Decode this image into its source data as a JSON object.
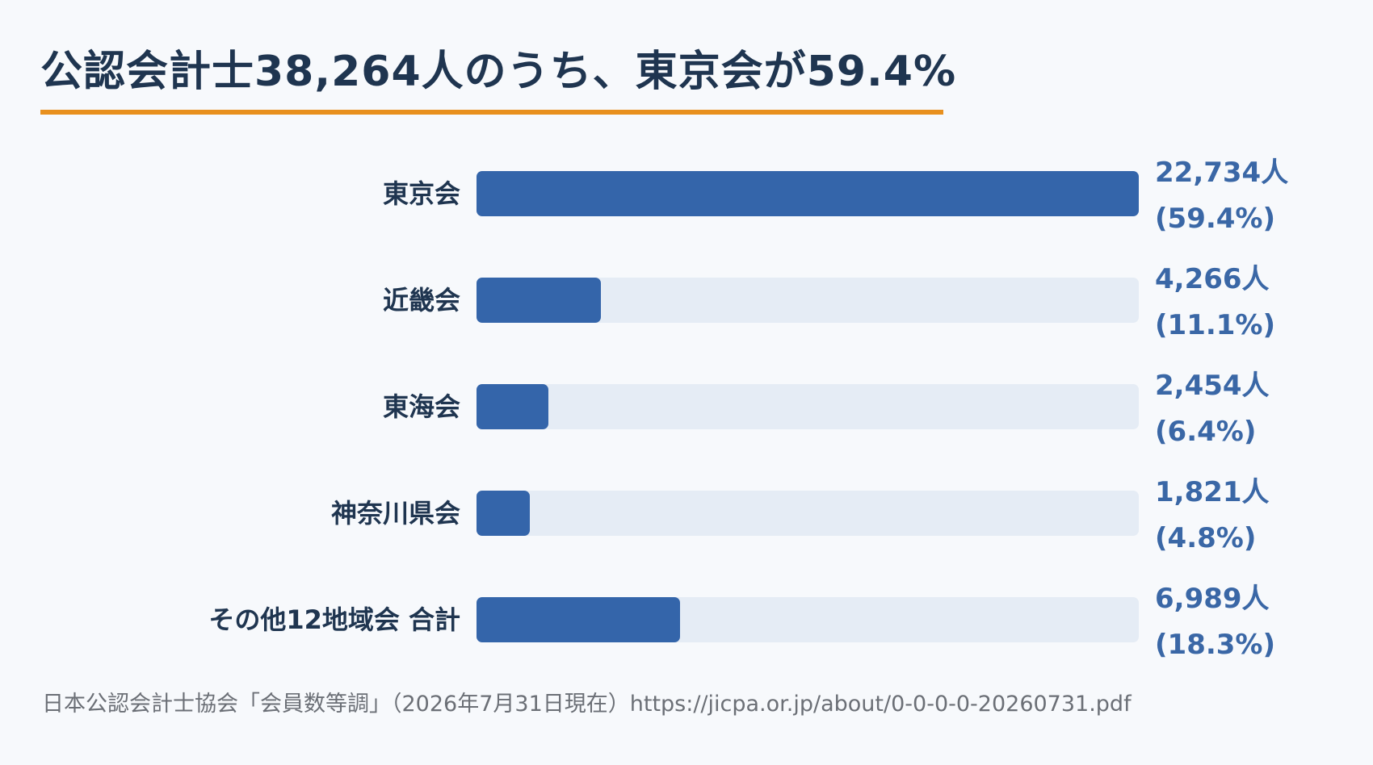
{
  "title": "公認会計士38,264人のうち、東京会が59.4%",
  "colors": {
    "accent": "#e8901e",
    "bar": "#3465aa",
    "track": "#e5ecf5",
    "value": "#3a67a6",
    "text": "#1f3550"
  },
  "chart_data": {
    "type": "bar",
    "orientation": "horizontal",
    "title": "公認会計士38,264人のうち、東京会が59.4%",
    "categories": [
      "東京会",
      "近畿会",
      "東海会",
      "神奈川県会",
      "その他12地域会 合計"
    ],
    "values": [
      22734,
      4266,
      2454,
      1821,
      6989
    ],
    "value_labels": [
      "22,734人",
      "4,266人",
      "2,454人",
      "1,821人",
      "6,989人"
    ],
    "percent_labels": [
      "(59.4%)",
      "(11.1%)",
      "(6.4%)",
      "(4.8%)",
      "(18.3%)"
    ],
    "xlim": [
      0,
      22734
    ],
    "xlabel": "",
    "ylabel": "",
    "grid": false
  },
  "source": "日本公認会計士協会「会員数等調」（2026年7月31日現在）https://jicpa.or.jp/about/0-0-0-0-20260731.pdf"
}
